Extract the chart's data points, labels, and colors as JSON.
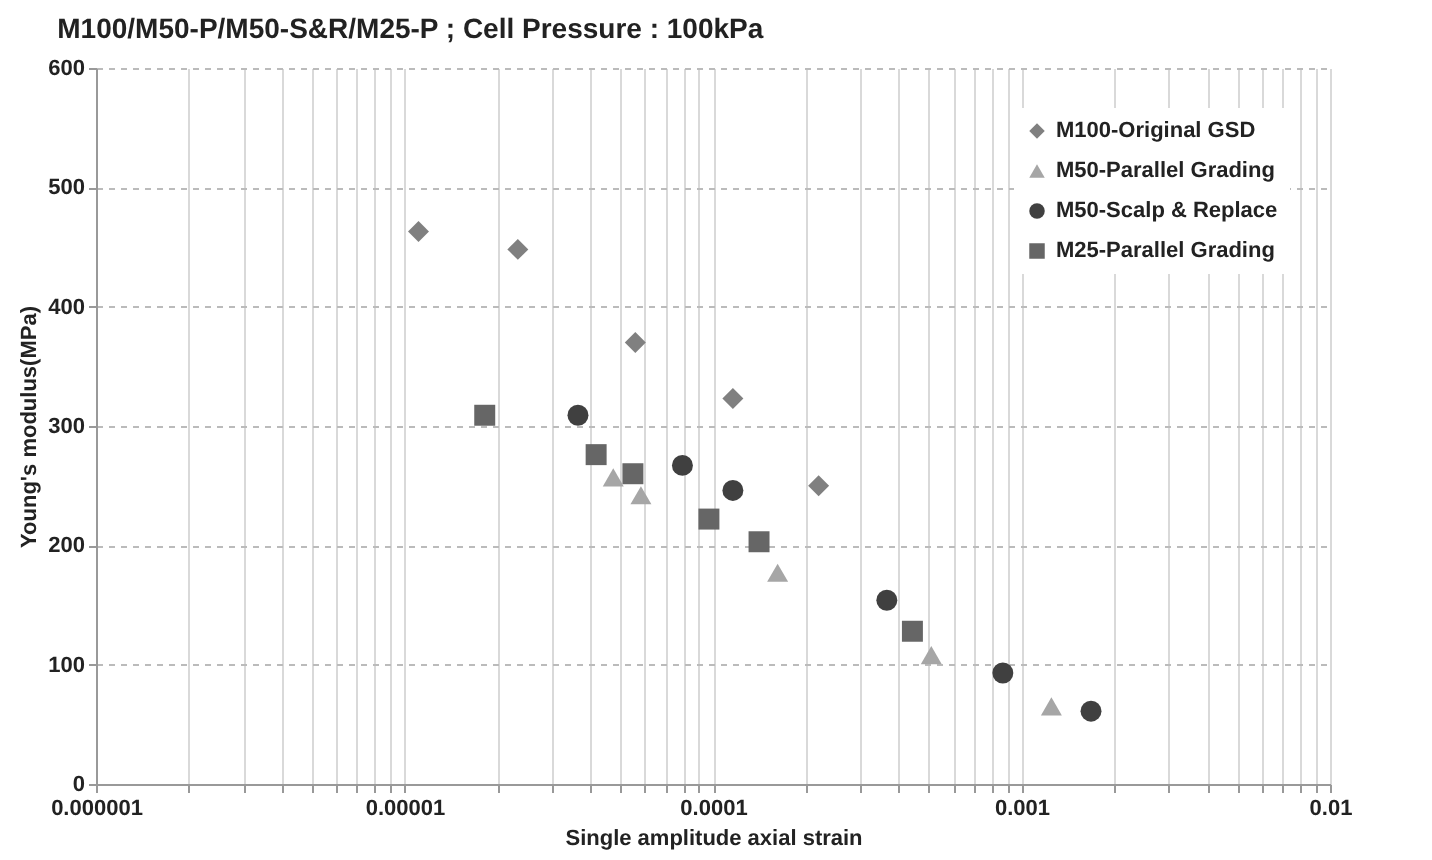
{
  "chart_data": {
    "type": "scatter",
    "title": "M100/M50-P/M50-S&R/M25-P ; Cell Pressure : 100kPa",
    "xlabel": "Single amplitude axial strain",
    "ylabel": "Young's modulus(MPa)",
    "log": "x",
    "grid": true,
    "legend": "top right",
    "xlim": [
      1e-06,
      0.01
    ],
    "xticks": [
      {
        "value": 1e-06,
        "label": "0.000001"
      },
      {
        "value": 2e-06,
        "label": null
      },
      {
        "value": 3e-06,
        "label": null
      },
      {
        "value": 4e-06,
        "label": null
      },
      {
        "value": 5e-06,
        "label": null
      },
      {
        "value": 6e-06,
        "label": null
      },
      {
        "value": 7e-06,
        "label": null
      },
      {
        "value": 8e-06,
        "label": null
      },
      {
        "value": 9e-06,
        "label": null
      },
      {
        "value": 1e-05,
        "label": "0.00001"
      },
      {
        "value": 2e-05,
        "label": null
      },
      {
        "value": 3e-05,
        "label": null
      },
      {
        "value": 4e-05,
        "label": null
      },
      {
        "value": 5e-05,
        "label": null
      },
      {
        "value": 6e-05,
        "label": null
      },
      {
        "value": 7e-05,
        "label": null
      },
      {
        "value": 8e-05,
        "label": null
      },
      {
        "value": 9e-05,
        "label": null
      },
      {
        "value": 0.0001,
        "label": "0.0001"
      },
      {
        "value": 0.0002,
        "label": null
      },
      {
        "value": 0.0003,
        "label": null
      },
      {
        "value": 0.0004,
        "label": null
      },
      {
        "value": 0.0005,
        "label": null
      },
      {
        "value": 0.0006,
        "label": null
      },
      {
        "value": 0.0007,
        "label": null
      },
      {
        "value": 0.0008,
        "label": null
      },
      {
        "value": 0.0009,
        "label": null
      },
      {
        "value": 0.001,
        "label": "0.001"
      },
      {
        "value": 0.002,
        "label": null
      },
      {
        "value": 0.003,
        "label": null
      },
      {
        "value": 0.004,
        "label": null
      },
      {
        "value": 0.005,
        "label": null
      },
      {
        "value": 0.006,
        "label": null
      },
      {
        "value": 0.007,
        "label": null
      },
      {
        "value": 0.008,
        "label": null
      },
      {
        "value": 0.009,
        "label": null
      },
      {
        "value": 0.01,
        "label": "0.01"
      }
    ],
    "ylim": [
      0,
      600
    ],
    "yticks": [
      0,
      100,
      200,
      300,
      400,
      500,
      600
    ],
    "series": [
      {
        "name": "M100-Original GSD",
        "color": "#808080",
        "marker": "diamond",
        "x": [
          1.11e-05,
          2.33e-05,
          5.6e-05,
          0.000116,
          0.00022
        ],
        "values": [
          463,
          448,
          370,
          323,
          250
        ]
      },
      {
        "name": "M50-Parallel Grading",
        "color": "#a6a6a6",
        "marker": "triangle",
        "x": [
          4.75e-05,
          5.84e-05,
          0.000162,
          0.00051,
          0.00125
        ],
        "values": [
          257,
          242,
          177,
          108,
          65
        ]
      },
      {
        "name": "M50-Scalp & Replace",
        "color": "#404040",
        "marker": "circle",
        "x": [
          3.65e-05,
          7.96e-05,
          0.000116,
          0.000366,
          0.00087,
          0.00168
        ],
        "values": [
          309,
          267,
          246,
          154,
          93,
          61
        ]
      },
      {
        "name": "M25-Parallel Grading",
        "color": "#666666",
        "marker": "square",
        "x": [
          1.82e-05,
          4.18e-05,
          5.5e-05,
          9.7e-05,
          0.000141,
          0.000443
        ],
        "values": [
          309,
          276,
          260,
          222,
          203,
          128
        ]
      }
    ]
  }
}
